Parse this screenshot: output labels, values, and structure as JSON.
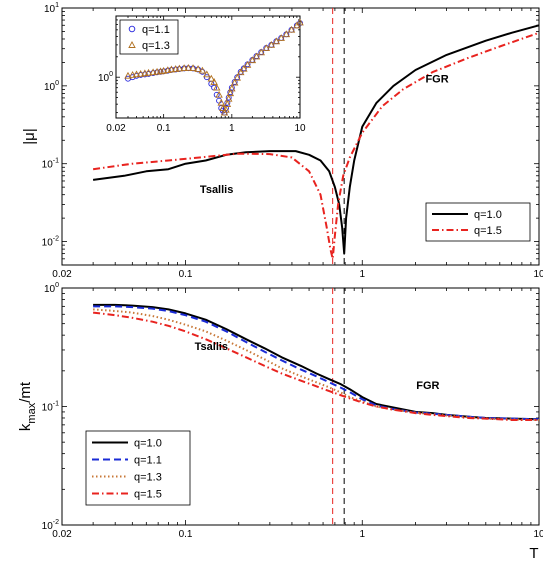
{
  "chart_data": [
    {
      "type": "line",
      "xscale": "log",
      "yscale": "log",
      "xlim": [
        0.02,
        10
      ],
      "ylim": [
        0.005,
        10
      ],
      "xlabel": "",
      "ylabel": "|μ|",
      "x_ticks": [
        "0.02",
        "0.1",
        "1",
        "10"
      ],
      "y_ticks": [
        {
          "base": "10",
          "exp": "1"
        },
        {
          "base": "10",
          "exp": "0"
        },
        {
          "base": "10",
          "exp": "-1"
        },
        {
          "base": "10",
          "exp": "-2"
        }
      ],
      "vlines": [
        {
          "x": 0.68,
          "color": "#e8231f"
        },
        {
          "x": 0.79,
          "color": "#000000"
        }
      ],
      "annotations": [
        {
          "text": "Tsallis",
          "x": 0.15,
          "y": 0.042
        },
        {
          "text": "FGR",
          "x": 2.65,
          "y": 1.1
        }
      ],
      "legend": "bottom-right",
      "series": [
        {
          "name": "q=1.0",
          "color": "#000000",
          "dash": "solid",
          "x": [
            0.03,
            0.045,
            0.06,
            0.08,
            0.1,
            0.13,
            0.17,
            0.22,
            0.3,
            0.42,
            0.5,
            0.58,
            0.65,
            0.7,
            0.74,
            0.77,
            0.79,
            0.81,
            0.85,
            0.9,
            1.0,
            1.2,
            1.5,
            2.0,
            3.0,
            5.0,
            7.0,
            10.0
          ],
          "y": [
            0.062,
            0.07,
            0.08,
            0.085,
            0.1,
            0.11,
            0.13,
            0.14,
            0.145,
            0.145,
            0.13,
            0.11,
            0.08,
            0.05,
            0.03,
            0.015,
            0.007,
            0.02,
            0.05,
            0.11,
            0.3,
            0.6,
            1.0,
            1.6,
            2.5,
            3.8,
            4.8,
            6.0
          ]
        },
        {
          "name": "q=1.5",
          "color": "#e8231f",
          "dash": "dashdot",
          "x": [
            0.03,
            0.05,
            0.08,
            0.12,
            0.2,
            0.3,
            0.4,
            0.5,
            0.58,
            0.63,
            0.66,
            0.68,
            0.7,
            0.73,
            0.78,
            0.85,
            1.0,
            1.3,
            1.7,
            2.5,
            4.0,
            6.0,
            10.0
          ],
          "y": [
            0.085,
            0.1,
            0.11,
            0.12,
            0.135,
            0.133,
            0.12,
            0.08,
            0.04,
            0.015,
            0.008,
            0.006,
            0.012,
            0.03,
            0.07,
            0.12,
            0.25,
            0.55,
            0.9,
            1.5,
            2.3,
            3.2,
            4.8
          ]
        }
      ]
    },
    {
      "type": "scatter",
      "inset": true,
      "xscale": "log",
      "yscale": "log",
      "xlim": [
        0.02,
        10
      ],
      "ylim": [
        0.25,
        8
      ],
      "x_ticks": [
        "0.02",
        "0.1",
        "1",
        "10"
      ],
      "y_ticks": [
        {
          "base": "10",
          "exp": "0"
        }
      ],
      "legend": "top-left",
      "series": [
        {
          "name": "q=1.1",
          "color": "#2222dd",
          "marker": "circle",
          "x": [
            0.03,
            0.035,
            0.04,
            0.046,
            0.053,
            0.06,
            0.07,
            0.08,
            0.09,
            0.1,
            0.115,
            0.13,
            0.15,
            0.17,
            0.2,
            0.23,
            0.27,
            0.32,
            0.37,
            0.43,
            0.5,
            0.55,
            0.6,
            0.65,
            0.7,
            0.74,
            0.78,
            0.82,
            0.86,
            0.9,
            0.95,
            1.0,
            1.1,
            1.2,
            1.35,
            1.5,
            1.7,
            2.0,
            2.3,
            2.7,
            3.2,
            3.8,
            4.5,
            5.3,
            6.3,
            7.5,
            9.0,
            10.0
          ],
          "y": [
            0.95,
            1.0,
            1.05,
            1.08,
            1.1,
            1.12,
            1.15,
            1.18,
            1.2,
            1.22,
            1.25,
            1.28,
            1.3,
            1.32,
            1.35,
            1.36,
            1.35,
            1.3,
            1.2,
            1.0,
            0.8,
            0.7,
            0.55,
            0.45,
            0.35,
            0.32,
            0.3,
            0.35,
            0.42,
            0.5,
            0.6,
            0.7,
            0.85,
            1.0,
            1.2,
            1.35,
            1.55,
            1.8,
            2.05,
            2.35,
            2.7,
            3.0,
            3.4,
            3.8,
            4.3,
            5.0,
            5.8,
            6.3
          ]
        },
        {
          "name": "q=1.3",
          "color": "#b07020",
          "marker": "triangle",
          "x": [
            0.03,
            0.035,
            0.04,
            0.046,
            0.053,
            0.06,
            0.07,
            0.08,
            0.09,
            0.1,
            0.115,
            0.13,
            0.15,
            0.17,
            0.2,
            0.23,
            0.27,
            0.32,
            0.37,
            0.43,
            0.5,
            0.55,
            0.6,
            0.65,
            0.7,
            0.74,
            0.78,
            0.82,
            0.86,
            0.9,
            0.95,
            1.0,
            1.1,
            1.2,
            1.35,
            1.5,
            1.7,
            2.0,
            2.3,
            2.7,
            3.2,
            3.8,
            4.5,
            5.3,
            6.3,
            7.5,
            9.0,
            10.0
          ],
          "y": [
            1.05,
            1.08,
            1.1,
            1.12,
            1.14,
            1.16,
            1.18,
            1.2,
            1.22,
            1.24,
            1.27,
            1.3,
            1.32,
            1.34,
            1.36,
            1.37,
            1.36,
            1.32,
            1.25,
            1.1,
            0.95,
            0.85,
            0.7,
            0.55,
            0.42,
            0.35,
            0.3,
            0.33,
            0.4,
            0.48,
            0.58,
            0.68,
            0.83,
            0.98,
            1.18,
            1.33,
            1.52,
            1.78,
            2.02,
            2.32,
            2.68,
            3.0,
            3.38,
            3.78,
            4.3,
            5.0,
            5.8,
            6.4
          ]
        }
      ]
    },
    {
      "type": "line",
      "xscale": "log",
      "yscale": "log",
      "xlim": [
        0.02,
        10
      ],
      "ylim": [
        0.01,
        1
      ],
      "xlabel": "T",
      "ylabel": {
        "main": "k",
        "sub": "max",
        "rest": "/mt"
      },
      "x_ticks": [
        "0.02",
        "0.1",
        "1",
        "10"
      ],
      "y_ticks": [
        {
          "base": "10",
          "exp": "0"
        },
        {
          "base": "10",
          "exp": "-1"
        },
        {
          "base": "10",
          "exp": "-2"
        }
      ],
      "vlines": [
        {
          "x": 0.68,
          "color": "#e8231f"
        },
        {
          "x": 0.79,
          "color": "#000000"
        }
      ],
      "annotations": [
        {
          "text": "Tsallis",
          "x": 0.14,
          "y": 0.3
        },
        {
          "text": "FGR",
          "x": 2.35,
          "y": 0.14
        }
      ],
      "legend": "bottom-left",
      "series": [
        {
          "name": "q=1.0",
          "color": "#000000",
          "dash": "solid",
          "x": [
            0.03,
            0.04,
            0.05,
            0.065,
            0.08,
            0.1,
            0.13,
            0.17,
            0.22,
            0.28,
            0.35,
            0.45,
            0.55,
            0.65,
            0.75,
            0.85,
            1.0,
            1.2,
            1.5,
            2.0,
            2.5,
            3.0,
            4.0,
            5.0,
            7.0,
            10.0
          ],
          "y": [
            0.72,
            0.72,
            0.71,
            0.69,
            0.66,
            0.61,
            0.54,
            0.45,
            0.37,
            0.31,
            0.26,
            0.22,
            0.19,
            0.17,
            0.155,
            0.14,
            0.12,
            0.105,
            0.098,
            0.09,
            0.088,
            0.085,
            0.082,
            0.08,
            0.079,
            0.078
          ]
        },
        {
          "name": "q=1.1",
          "color": "#1a2bd6",
          "dash": "dashed",
          "x": [
            0.03,
            0.04,
            0.05,
            0.065,
            0.08,
            0.1,
            0.13,
            0.17,
            0.22,
            0.28,
            0.35,
            0.45,
            0.55,
            0.65,
            0.75,
            0.85,
            1.0,
            1.2,
            1.5,
            2.0,
            2.5,
            3.0,
            4.0,
            5.0,
            7.0,
            10.0
          ],
          "y": [
            0.7,
            0.7,
            0.69,
            0.67,
            0.64,
            0.59,
            0.52,
            0.43,
            0.35,
            0.29,
            0.245,
            0.205,
            0.18,
            0.16,
            0.145,
            0.132,
            0.115,
            0.102,
            0.095,
            0.089,
            0.087,
            0.085,
            0.082,
            0.08,
            0.079,
            0.078
          ]
        },
        {
          "name": "q=1.3",
          "color": "#c87838",
          "dash": "dotted",
          "x": [
            0.03,
            0.04,
            0.05,
            0.065,
            0.08,
            0.1,
            0.13,
            0.17,
            0.22,
            0.28,
            0.35,
            0.45,
            0.55,
            0.65,
            0.75,
            0.85,
            1.0,
            1.2,
            1.5,
            2.0,
            2.5,
            3.0,
            4.0,
            5.0,
            7.0,
            10.0
          ],
          "y": [
            0.66,
            0.64,
            0.62,
            0.58,
            0.54,
            0.49,
            0.43,
            0.36,
            0.3,
            0.25,
            0.21,
            0.18,
            0.16,
            0.145,
            0.132,
            0.12,
            0.11,
            0.1,
            0.094,
            0.089,
            0.086,
            0.084,
            0.081,
            0.079,
            0.078,
            0.077
          ]
        },
        {
          "name": "q=1.5",
          "color": "#e8231f",
          "dash": "dashdot",
          "x": [
            0.03,
            0.04,
            0.05,
            0.065,
            0.08,
            0.1,
            0.13,
            0.17,
            0.22,
            0.28,
            0.35,
            0.45,
            0.55,
            0.65,
            0.75,
            0.85,
            1.0,
            1.2,
            1.5,
            2.0,
            2.5,
            3.0,
            4.0,
            5.0,
            7.0,
            10.0
          ],
          "y": [
            0.62,
            0.59,
            0.56,
            0.52,
            0.48,
            0.43,
            0.37,
            0.31,
            0.26,
            0.22,
            0.19,
            0.165,
            0.148,
            0.135,
            0.125,
            0.117,
            0.108,
            0.1,
            0.094,
            0.088,
            0.085,
            0.083,
            0.08,
            0.079,
            0.077,
            0.077
          ]
        }
      ]
    }
  ]
}
